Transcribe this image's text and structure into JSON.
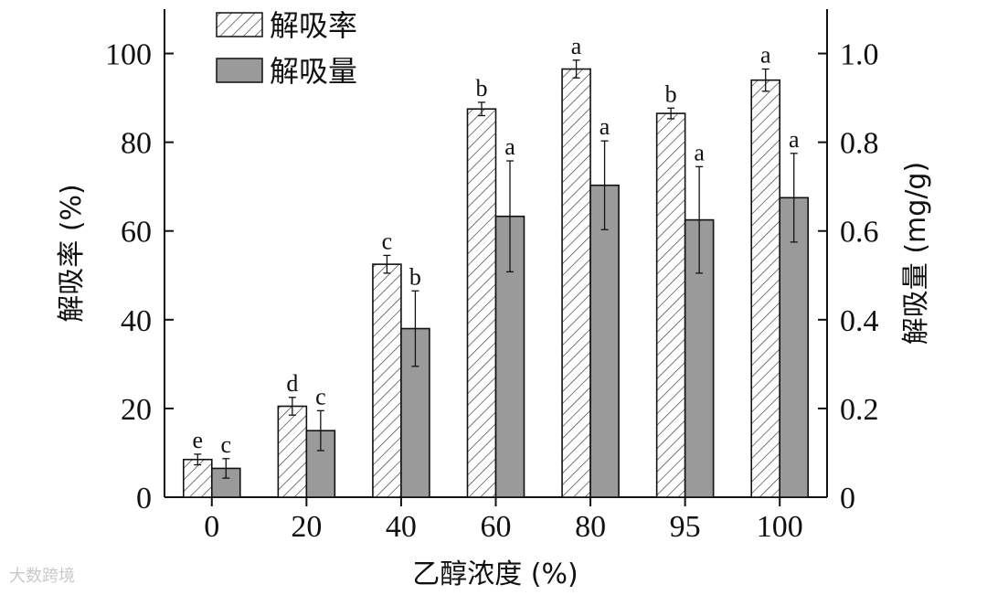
{
  "chart_data": {
    "type": "bar",
    "xlabel": "乙醇浓度 (%)",
    "ylabel_left": "解吸率 (%)",
    "ylabel_right": "解吸量 (mg/g)",
    "ylim_left": [
      0,
      110
    ],
    "ylim_right": [
      0,
      1.1
    ],
    "yticks_left": [
      "0",
      "20",
      "40",
      "60",
      "80",
      "100"
    ],
    "yticks_right": [
      "0",
      "0.2",
      "0.4",
      "0.6",
      "0.8",
      "1.0"
    ],
    "categories": [
      "0",
      "20",
      "40",
      "60",
      "80",
      "95",
      "100"
    ],
    "series": [
      {
        "name": "解吸率",
        "axis": "left",
        "pattern": "hatch",
        "values": [
          8.5,
          20.5,
          52.5,
          87.5,
          96.5,
          86.5,
          94.0
        ],
        "errors": [
          1.2,
          2.0,
          2.0,
          1.5,
          2.0,
          1.2,
          2.5
        ],
        "labels": [
          "e",
          "d",
          "c",
          "b",
          "a",
          "b",
          "a"
        ]
      },
      {
        "name": "解吸量",
        "axis": "right",
        "color": "#9a9a9a",
        "values": [
          0.065,
          0.15,
          0.38,
          0.633,
          0.703,
          0.625,
          0.675
        ],
        "errors": [
          0.022,
          0.045,
          0.085,
          0.125,
          0.1,
          0.12,
          0.1
        ],
        "labels": [
          "c",
          "c",
          "b",
          "a",
          "a",
          "a",
          "a"
        ]
      }
    ],
    "legend_position": "top-left",
    "grid": false
  },
  "watermark": "大数跨境"
}
